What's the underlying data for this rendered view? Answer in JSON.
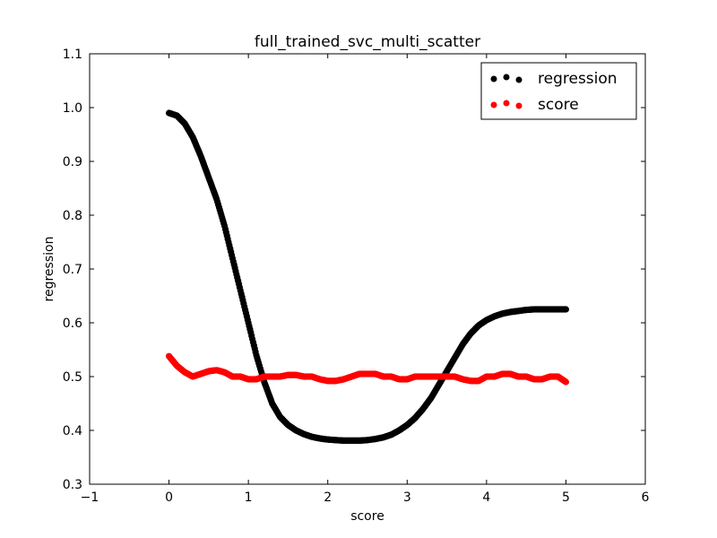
{
  "chart_data": {
    "type": "scatter",
    "title": "full_trained_svc_multi_scatter",
    "xlabel": "score",
    "ylabel": "regression",
    "xlim": [
      -1,
      6
    ],
    "ylim": [
      0.3,
      1.1
    ],
    "xticks": [
      -1,
      0,
      1,
      2,
      3,
      4,
      5,
      6
    ],
    "xtick_labels": [
      "−1",
      "0",
      "1",
      "2",
      "3",
      "4",
      "5",
      "6"
    ],
    "yticks": [
      0.3,
      0.4,
      0.5,
      0.6,
      0.7,
      0.8,
      0.9,
      1.0,
      1.1
    ],
    "ytick_labels": [
      "0.3",
      "0.4",
      "0.5",
      "0.6",
      "0.7",
      "0.8",
      "0.9",
      "1.0",
      "1.1"
    ],
    "grid": false,
    "legend_position": "top-right",
    "series": [
      {
        "name": "regression",
        "color": "#000000",
        "x": [
          0.0,
          0.1,
          0.2,
          0.3,
          0.4,
          0.5,
          0.6,
          0.7,
          0.8,
          0.9,
          1.0,
          1.1,
          1.2,
          1.3,
          1.4,
          1.5,
          1.6,
          1.7,
          1.8,
          1.9,
          2.0,
          2.1,
          2.2,
          2.3,
          2.4,
          2.5,
          2.6,
          2.7,
          2.8,
          2.9,
          3.0,
          3.1,
          3.2,
          3.3,
          3.4,
          3.5,
          3.6,
          3.7,
          3.8,
          3.9,
          4.0,
          4.1,
          4.2,
          4.3,
          4.4,
          4.5,
          4.6,
          4.7,
          4.8,
          4.9,
          5.0
        ],
        "y": [
          0.99,
          0.985,
          0.97,
          0.945,
          0.91,
          0.87,
          0.83,
          0.78,
          0.72,
          0.66,
          0.6,
          0.54,
          0.49,
          0.45,
          0.425,
          0.41,
          0.4,
          0.393,
          0.388,
          0.385,
          0.383,
          0.382,
          0.381,
          0.381,
          0.381,
          0.382,
          0.384,
          0.387,
          0.392,
          0.4,
          0.41,
          0.423,
          0.44,
          0.46,
          0.485,
          0.51,
          0.535,
          0.56,
          0.58,
          0.595,
          0.605,
          0.612,
          0.617,
          0.62,
          0.622,
          0.624,
          0.625,
          0.625,
          0.625,
          0.625,
          0.625
        ]
      },
      {
        "name": "score",
        "color": "#ff0000",
        "x": [
          0.0,
          0.1,
          0.2,
          0.3,
          0.4,
          0.5,
          0.6,
          0.7,
          0.8,
          0.9,
          1.0,
          1.1,
          1.2,
          1.3,
          1.4,
          1.5,
          1.6,
          1.7,
          1.8,
          1.9,
          2.0,
          2.1,
          2.2,
          2.3,
          2.4,
          2.5,
          2.6,
          2.7,
          2.8,
          2.9,
          3.0,
          3.1,
          3.2,
          3.3,
          3.4,
          3.5,
          3.6,
          3.7,
          3.8,
          3.9,
          4.0,
          4.1,
          4.2,
          4.3,
          4.4,
          4.5,
          4.6,
          4.7,
          4.8,
          4.9,
          5.0
        ],
        "y": [
          0.538,
          0.52,
          0.508,
          0.5,
          0.505,
          0.51,
          0.512,
          0.508,
          0.5,
          0.5,
          0.495,
          0.495,
          0.5,
          0.5,
          0.5,
          0.503,
          0.503,
          0.5,
          0.5,
          0.495,
          0.492,
          0.492,
          0.495,
          0.5,
          0.505,
          0.505,
          0.505,
          0.5,
          0.5,
          0.495,
          0.495,
          0.5,
          0.5,
          0.5,
          0.5,
          0.5,
          0.5,
          0.495,
          0.492,
          0.492,
          0.5,
          0.5,
          0.505,
          0.505,
          0.5,
          0.5,
          0.495,
          0.495,
          0.5,
          0.5,
          0.49
        ]
      }
    ]
  }
}
